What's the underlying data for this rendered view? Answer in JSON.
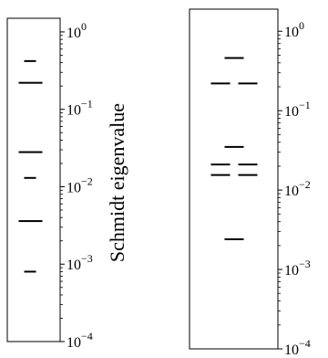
{
  "chart_data": [
    {
      "type": "scatter",
      "marker": "horizontal-dash",
      "title": "",
      "xlabel": "",
      "ylabel": "Schmidt eigenvalue",
      "yscale": "log",
      "ylim": [
        0.0001,
        1.5
      ],
      "yticks": [
        {
          "value": 1,
          "base": "10",
          "exp": "0"
        },
        {
          "value": 0.1,
          "base": "10",
          "exp": "−1"
        },
        {
          "value": 0.01,
          "base": "10",
          "exp": "−2"
        },
        {
          "value": 0.001,
          "base": "10",
          "exp": "−3"
        },
        {
          "value": 0.0001,
          "base": "10",
          "exp": "−4"
        }
      ],
      "grid": false,
      "legend": "none",
      "color": "#000000",
      "eigenvalues": [
        0.42,
        0.22,
        0.22,
        0.028,
        0.028,
        0.013,
        0.0036,
        0.0036,
        0.0008
      ]
    },
    {
      "type": "scatter",
      "marker": "horizontal-dash",
      "title": "",
      "xlabel": "",
      "ylabel": "",
      "yscale": "log",
      "ylim": [
        0.0001,
        1.9
      ],
      "yticks": [
        {
          "value": 1,
          "base": "10",
          "exp": "0"
        },
        {
          "value": 0.1,
          "base": "10",
          "exp": "−1"
        },
        {
          "value": 0.01,
          "base": "10",
          "exp": "−2"
        },
        {
          "value": 0.001,
          "base": "10",
          "exp": "−3"
        },
        {
          "value": 0.0001,
          "base": "10",
          "exp": "−4"
        }
      ],
      "grid": false,
      "legend": "none",
      "color": "#000000",
      "eigenvalues": [
        0.46,
        0.22,
        0.22,
        0.035,
        0.021,
        0.021,
        0.0155,
        0.0155,
        0.0024
      ]
    }
  ]
}
